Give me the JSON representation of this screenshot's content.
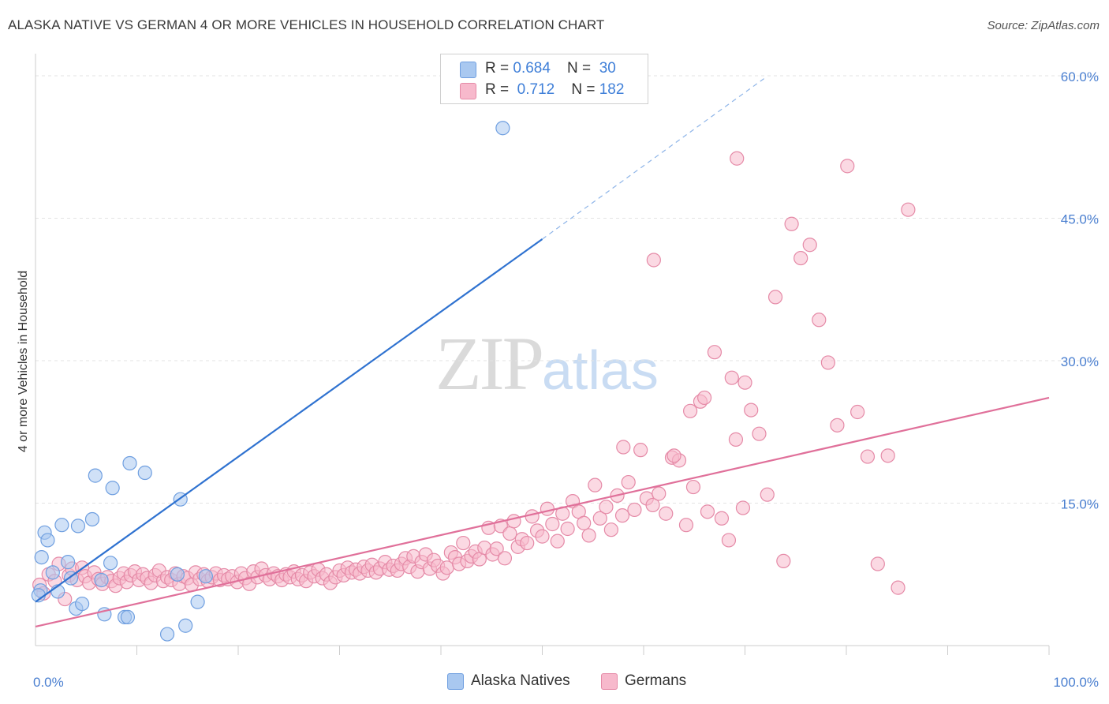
{
  "title": "ALASKA NATIVE VS GERMAN 4 OR MORE VEHICLES IN HOUSEHOLD CORRELATION CHART",
  "source": "Source: ZipAtlas.com",
  "watermark": {
    "zip": "ZIP",
    "atlas": "atlas"
  },
  "legend": {
    "rows": [
      {
        "r_label": "R = ",
        "r_value": "0.684",
        "n_label": "N = ",
        "n_value": "30",
        "color": "#a9c8f0",
        "border": "#6f9fe0"
      },
      {
        "r_label": "R = ",
        "r_value": "0.712",
        "n_label": "N = ",
        "n_value": "182",
        "color": "#f7b9cc",
        "border": "#e58aa7"
      }
    ]
  },
  "chart_data": {
    "type": "scatter",
    "title": "ALASKA NATIVE VS GERMAN 4 OR MORE VEHICLES IN HOUSEHOLD CORRELATION CHART",
    "xlabel": "",
    "ylabel": "4 or more Vehicles in Household",
    "xlim": [
      0,
      100
    ],
    "ylim": [
      0,
      61.5
    ],
    "y_ticks": [
      {
        "value": 15,
        "label": "15.0%"
      },
      {
        "value": 30,
        "label": "30.0%"
      },
      {
        "value": 45,
        "label": "45.0%"
      },
      {
        "value": 60,
        "label": "60.0%"
      }
    ],
    "x_tick_labels": [
      {
        "value": 0,
        "label": "0.0%"
      },
      {
        "value": 100,
        "label": "100.0%"
      }
    ],
    "x_minor_ticks": [
      10,
      20,
      30,
      40,
      50,
      60,
      70,
      80,
      90,
      100
    ],
    "series": [
      {
        "name": "Alaska Natives",
        "color": "#a9c8f0",
        "stroke": "#6f9fe0",
        "line_color": "#2f72d0",
        "trend": {
          "x0": 0,
          "y0": 4.6,
          "x1": 50,
          "y1": 42.8,
          "dash_to_x": 72,
          "dash_to_y": 59.8
        },
        "points": [
          [
            0.5,
            5.8
          ],
          [
            0.6,
            9.3
          ],
          [
            0.9,
            11.9
          ],
          [
            1.2,
            11.1
          ],
          [
            1.7,
            7.7
          ],
          [
            2.2,
            5.7
          ],
          [
            2.6,
            12.7
          ],
          [
            3.2,
            8.8
          ],
          [
            3.5,
            7.1
          ],
          [
            4.0,
            3.9
          ],
          [
            4.2,
            12.6
          ],
          [
            4.6,
            4.4
          ],
          [
            5.6,
            13.3
          ],
          [
            5.9,
            17.9
          ],
          [
            6.5,
            6.9
          ],
          [
            6.8,
            3.3
          ],
          [
            7.4,
            8.7
          ],
          [
            7.6,
            16.6
          ],
          [
            8.8,
            3.0
          ],
          [
            9.1,
            3.0
          ],
          [
            9.3,
            19.2
          ],
          [
            10.8,
            18.2
          ],
          [
            13.0,
            1.2
          ],
          [
            14.0,
            7.5
          ],
          [
            14.3,
            15.4
          ],
          [
            14.8,
            2.1
          ],
          [
            16.0,
            4.6
          ],
          [
            16.8,
            7.3
          ],
          [
            46.1,
            54.5
          ],
          [
            0.3,
            5.3
          ]
        ]
      },
      {
        "name": "Germans",
        "color": "#f7b9cc",
        "stroke": "#e58aa7",
        "line_color": "#e0709a",
        "trend": {
          "x0": 0,
          "y0": 2.0,
          "x1": 100,
          "y1": 26.1
        },
        "points": [
          [
            0.4,
            6.4
          ],
          [
            0.8,
            5.5
          ],
          [
            1.3,
            7.5
          ],
          [
            1.9,
            6.8
          ],
          [
            2.3,
            8.6
          ],
          [
            2.9,
            4.9
          ],
          [
            3.3,
            7.4
          ],
          [
            3.6,
            8.1
          ],
          [
            4.1,
            6.9
          ],
          [
            4.6,
            8.2
          ],
          [
            4.9,
            7.3
          ],
          [
            5.3,
            6.6
          ],
          [
            5.8,
            7.7
          ],
          [
            6.2,
            7.0
          ],
          [
            6.6,
            6.5
          ],
          [
            7.1,
            7.2
          ],
          [
            7.5,
            6.8
          ],
          [
            7.9,
            6.3
          ],
          [
            8.3,
            7.1
          ],
          [
            8.7,
            7.6
          ],
          [
            9.0,
            6.7
          ],
          [
            9.4,
            7.4
          ],
          [
            9.8,
            7.8
          ],
          [
            10.2,
            6.9
          ],
          [
            10.6,
            7.5
          ],
          [
            11.0,
            7.1
          ],
          [
            11.4,
            6.6
          ],
          [
            11.8,
            7.4
          ],
          [
            12.2,
            7.9
          ],
          [
            12.6,
            6.8
          ],
          [
            13.0,
            7.2
          ],
          [
            13.4,
            6.9
          ],
          [
            13.8,
            7.6
          ],
          [
            14.2,
            6.5
          ],
          [
            14.6,
            7.3
          ],
          [
            15.0,
            7.1
          ],
          [
            15.4,
            6.4
          ],
          [
            15.8,
            7.7
          ],
          [
            16.2,
            7.0
          ],
          [
            16.6,
            7.5
          ],
          [
            17.0,
            6.8
          ],
          [
            17.4,
            7.2
          ],
          [
            17.8,
            7.6
          ],
          [
            18.2,
            6.9
          ],
          [
            18.6,
            7.4
          ],
          [
            19.0,
            7.0
          ],
          [
            19.4,
            7.3
          ],
          [
            19.9,
            6.7
          ],
          [
            20.3,
            7.6
          ],
          [
            20.7,
            7.1
          ],
          [
            21.1,
            6.5
          ],
          [
            21.5,
            7.8
          ],
          [
            21.9,
            7.2
          ],
          [
            22.3,
            8.1
          ],
          [
            22.7,
            7.4
          ],
          [
            23.1,
            7.0
          ],
          [
            23.5,
            7.6
          ],
          [
            23.9,
            7.3
          ],
          [
            24.3,
            6.9
          ],
          [
            24.7,
            7.5
          ],
          [
            25.1,
            7.2
          ],
          [
            25.5,
            7.8
          ],
          [
            25.9,
            7.0
          ],
          [
            26.3,
            7.4
          ],
          [
            26.7,
            6.8
          ],
          [
            27.1,
            7.7
          ],
          [
            27.5,
            7.3
          ],
          [
            27.9,
            8.0
          ],
          [
            28.3,
            7.1
          ],
          [
            28.7,
            7.5
          ],
          [
            29.1,
            6.6
          ],
          [
            29.6,
            7.2
          ],
          [
            30.0,
            7.9
          ],
          [
            30.4,
            7.4
          ],
          [
            30.8,
            8.2
          ],
          [
            31.2,
            7.7
          ],
          [
            31.6,
            8.0
          ],
          [
            32.0,
            7.6
          ],
          [
            32.4,
            8.3
          ],
          [
            32.8,
            7.9
          ],
          [
            33.2,
            8.5
          ],
          [
            33.6,
            7.7
          ],
          [
            34.0,
            8.1
          ],
          [
            34.5,
            8.8
          ],
          [
            34.9,
            8.0
          ],
          [
            35.3,
            8.4
          ],
          [
            35.7,
            7.9
          ],
          [
            36.1,
            8.6
          ],
          [
            36.5,
            9.2
          ],
          [
            36.9,
            8.3
          ],
          [
            37.3,
            9.4
          ],
          [
            37.7,
            7.8
          ],
          [
            38.1,
            8.8
          ],
          [
            38.5,
            9.6
          ],
          [
            38.9,
            8.1
          ],
          [
            39.3,
            9.0
          ],
          [
            39.7,
            8.4
          ],
          [
            40.2,
            7.6
          ],
          [
            40.6,
            8.2
          ],
          [
            41.0,
            9.8
          ],
          [
            41.4,
            9.3
          ],
          [
            41.8,
            8.6
          ],
          [
            42.2,
            10.8
          ],
          [
            42.6,
            8.9
          ],
          [
            43.0,
            9.4
          ],
          [
            43.4,
            9.9
          ],
          [
            43.8,
            9.1
          ],
          [
            44.3,
            10.3
          ],
          [
            44.7,
            12.4
          ],
          [
            45.1,
            9.6
          ],
          [
            45.5,
            10.2
          ],
          [
            45.9,
            12.6
          ],
          [
            46.3,
            9.2
          ],
          [
            46.8,
            11.8
          ],
          [
            47.2,
            13.1
          ],
          [
            47.6,
            10.4
          ],
          [
            48.0,
            11.2
          ],
          [
            48.5,
            10.8
          ],
          [
            49.0,
            13.6
          ],
          [
            49.5,
            12.1
          ],
          [
            50.0,
            11.5
          ],
          [
            50.5,
            14.4
          ],
          [
            51.0,
            12.8
          ],
          [
            51.5,
            11.0
          ],
          [
            52.0,
            13.9
          ],
          [
            52.5,
            12.3
          ],
          [
            53.0,
            15.2
          ],
          [
            53.6,
            14.1
          ],
          [
            54.1,
            12.9
          ],
          [
            54.6,
            11.6
          ],
          [
            55.2,
            16.9
          ],
          [
            55.7,
            13.4
          ],
          [
            56.3,
            14.6
          ],
          [
            56.8,
            12.2
          ],
          [
            57.4,
            15.8
          ],
          [
            57.9,
            13.7
          ],
          [
            58.5,
            17.2
          ],
          [
            59.1,
            14.3
          ],
          [
            59.7,
            20.6
          ],
          [
            60.3,
            15.5
          ],
          [
            60.9,
            14.8
          ],
          [
            61.5,
            16.0
          ],
          [
            62.2,
            13.9
          ],
          [
            62.8,
            19.8
          ],
          [
            63.5,
            19.5
          ],
          [
            64.2,
            12.7
          ],
          [
            64.9,
            16.7
          ],
          [
            65.6,
            25.7
          ],
          [
            66.3,
            14.1
          ],
          [
            67.0,
            30.9
          ],
          [
            67.7,
            13.4
          ],
          [
            68.4,
            11.1
          ],
          [
            69.1,
            21.7
          ],
          [
            69.8,
            14.5
          ],
          [
            70.6,
            24.8
          ],
          [
            71.4,
            22.3
          ],
          [
            72.2,
            15.9
          ],
          [
            73.0,
            36.7
          ],
          [
            73.8,
            8.9
          ],
          [
            74.6,
            44.4
          ],
          [
            75.5,
            40.8
          ],
          [
            76.4,
            42.2
          ],
          [
            77.3,
            34.3
          ],
          [
            78.2,
            29.8
          ],
          [
            79.1,
            23.2
          ],
          [
            80.1,
            50.5
          ],
          [
            81.1,
            24.6
          ],
          [
            82.1,
            19.9
          ],
          [
            83.1,
            8.6
          ],
          [
            84.1,
            20.0
          ],
          [
            85.1,
            6.1
          ],
          [
            86.1,
            45.9
          ],
          [
            69.2,
            51.3
          ],
          [
            66.0,
            26.1
          ],
          [
            68.7,
            28.2
          ],
          [
            63.0,
            20.0
          ],
          [
            61.0,
            40.6
          ],
          [
            70.0,
            27.7
          ],
          [
            58.0,
            20.9
          ],
          [
            64.6,
            24.7
          ]
        ]
      }
    ],
    "legend": [
      {
        "label": "Alaska Natives",
        "color": "#a9c8f0",
        "stroke": "#6f9fe0"
      },
      {
        "label": "Germans",
        "color": "#f7b9cc",
        "stroke": "#e58aa7"
      }
    ]
  }
}
